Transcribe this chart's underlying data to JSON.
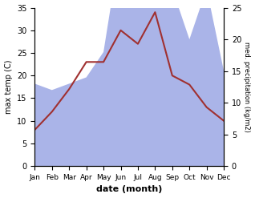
{
  "months": [
    "Jan",
    "Feb",
    "Mar",
    "Apr",
    "May",
    "Jun",
    "Jul",
    "Aug",
    "Sep",
    "Oct",
    "Nov",
    "Dec"
  ],
  "temperature": [
    8,
    12,
    17,
    23,
    23,
    30,
    27,
    34,
    20,
    18,
    13,
    10
  ],
  "precipitation": [
    13,
    12,
    13,
    14,
    18,
    35,
    33,
    33,
    28,
    20,
    28,
    15
  ],
  "temp_color": "#a03030",
  "precip_color": "#aab4e8",
  "background_color": "#ffffff",
  "ylabel_left": "max temp (C)",
  "ylabel_right": "med. precipitation (kg/m2)",
  "xlabel": "date (month)",
  "ylim_left": [
    0,
    35
  ],
  "ylim_right": [
    0,
    25
  ],
  "yticks_left": [
    0,
    5,
    10,
    15,
    20,
    25,
    30,
    35
  ],
  "yticks_right": [
    0,
    5,
    10,
    15,
    20,
    25
  ]
}
